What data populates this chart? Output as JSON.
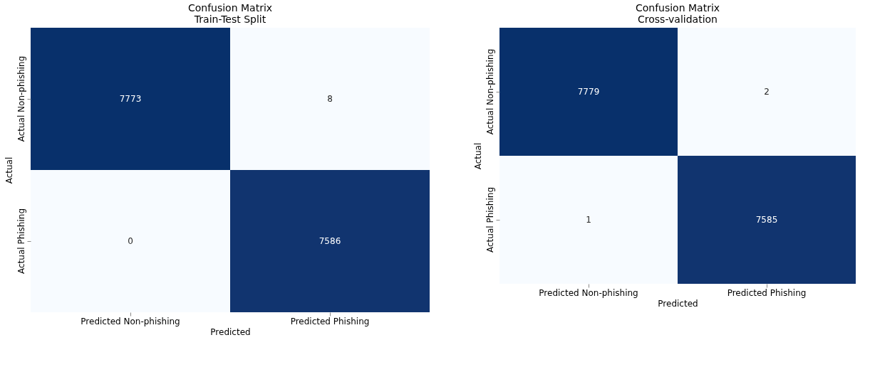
{
  "chart_data": [
    {
      "type": "heatmap",
      "title": "Confusion Matrix",
      "subtitle": "Train-Test Split",
      "xlabel": "Predicted",
      "ylabel": "Actual",
      "categories": [
        "Predicted Non-phishing",
        "Predicted Phishing"
      ],
      "y_categories": [
        "Actual Non-phishing",
        "Actual Phishing"
      ],
      "cells": [
        [
          7773,
          8
        ],
        [
          0,
          7586
        ]
      ],
      "colors": [
        "#f7fbff",
        "#08306b"
      ],
      "data_labels": true
    },
    {
      "type": "heatmap",
      "title": "Confusion Matrix",
      "subtitle": "Cross-validation",
      "xlabel": "Predicted",
      "ylabel": "Actual",
      "categories": [
        "Predicted Non-phishing",
        "Predicted Phishing"
      ],
      "y_categories": [
        "Actual Non-phishing",
        "Actual Phishing"
      ],
      "cells": [
        [
          7779,
          2
        ],
        [
          1,
          7585
        ]
      ],
      "colors": [
        "#f7fbff",
        "#08306b"
      ],
      "data_labels": true
    }
  ]
}
